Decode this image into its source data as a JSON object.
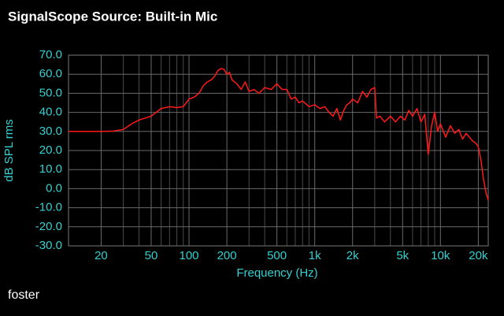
{
  "chart_data": {
    "type": "line",
    "title": "SignalScope Source:  Built-in Mic",
    "footer": "foster",
    "x_label": "Frequency (Hz)",
    "y_label": "dB SPL rms",
    "xscale": "log",
    "xlim": [
      11,
      24000
    ],
    "ylim": [
      -30,
      70
    ],
    "xticks": [
      20,
      50,
      100,
      200,
      500,
      {
        "value": 1000,
        "label": "1k"
      },
      {
        "value": 2000,
        "label": "2k"
      },
      {
        "value": 5000,
        "label": "5k"
      },
      {
        "value": 10000,
        "label": "10k"
      },
      {
        "value": 20000,
        "label": "20k"
      }
    ],
    "xminor": [
      30,
      40,
      60,
      70,
      80,
      90,
      300,
      400,
      600,
      700,
      800,
      900,
      3000,
      4000,
      6000,
      7000,
      8000,
      9000
    ],
    "yticks": [
      {
        "value": 70,
        "label": "70.0"
      },
      {
        "value": 60,
        "label": "60.0"
      },
      {
        "value": 50,
        "label": "50.0"
      },
      {
        "value": 40,
        "label": "40.0"
      },
      {
        "value": 30,
        "label": "30.0"
      },
      {
        "value": 20,
        "label": "20.0"
      },
      {
        "value": 10,
        "label": "10.0"
      },
      {
        "value": 0,
        "label": "0.0"
      },
      {
        "value": -10,
        "label": "-10.0"
      },
      {
        "value": -20,
        "label": "-20.0"
      },
      {
        "value": -30,
        "label": "-30.0"
      }
    ],
    "grid": true,
    "color": "#ff1a1a",
    "x": [
      11,
      15,
      20,
      25,
      30,
      35,
      40,
      50,
      60,
      70,
      80,
      90,
      100,
      110,
      120,
      130,
      140,
      150,
      160,
      170,
      180,
      190,
      200,
      210,
      220,
      240,
      260,
      280,
      300,
      330,
      360,
      400,
      450,
      500,
      550,
      600,
      650,
      700,
      750,
      800,
      900,
      1000,
      1100,
      1200,
      1300,
      1400,
      1500,
      1600,
      1700,
      1800,
      1900,
      2000,
      2200,
      2400,
      2600,
      2800,
      3000,
      3100,
      3300,
      3600,
      4000,
      4400,
      4800,
      5200,
      5600,
      6000,
      6500,
      7000,
      7500,
      8000,
      8500,
      9000,
      9500,
      10000,
      11000,
      12000,
      13000,
      14000,
      15000,
      16000,
      17000,
      18000,
      19000,
      20000,
      21000,
      22000,
      23000,
      24000
    ],
    "values": [
      30,
      30,
      30,
      30.2,
      31,
      34,
      36,
      38,
      42,
      43,
      42.5,
      43,
      47,
      48,
      50,
      54,
      56,
      57,
      59,
      62,
      63,
      62.5,
      60,
      61,
      57,
      55,
      52,
      56,
      51,
      52,
      50,
      53,
      52,
      55,
      52,
      52,
      47,
      48,
      45,
      46,
      43,
      44,
      42,
      43,
      40,
      38,
      42,
      36,
      41,
      44,
      45,
      47,
      45,
      51,
      48,
      52,
      53,
      37,
      38,
      35,
      38,
      35,
      38,
      36,
      41,
      38,
      42,
      35,
      39,
      18,
      33,
      40,
      30,
      34,
      27,
      33,
      29,
      31,
      26,
      29,
      27,
      25,
      24,
      22,
      15,
      5,
      -2,
      -6
    ]
  }
}
